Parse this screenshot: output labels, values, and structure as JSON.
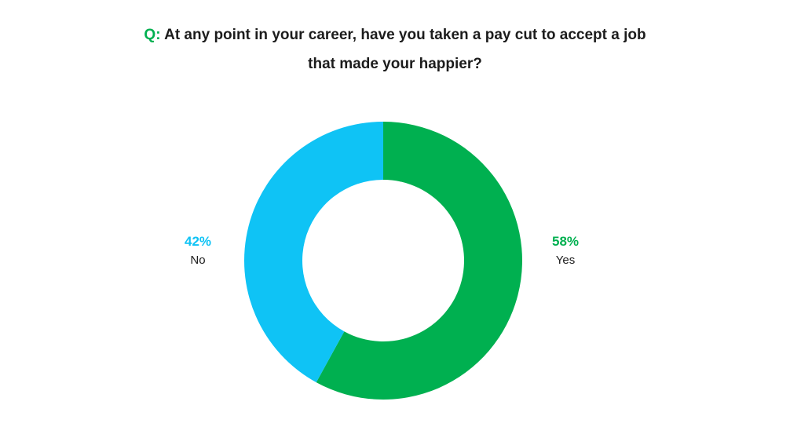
{
  "title": {
    "prefix": "Q:",
    "line1": "At any point in your career, have you taken a pay cut to accept a job",
    "line2": "that made your happier?"
  },
  "colors": {
    "accent_green": "#00b050",
    "accent_blue": "#0fc3f5",
    "text": "#1c1c1c"
  },
  "chart_data": {
    "type": "pie",
    "donut": true,
    "start_angle_deg": 0,
    "direction": "clockwise",
    "slices": [
      {
        "label": "Yes",
        "percent_label": "58%",
        "value": 58,
        "color": "#00b050"
      },
      {
        "label": "No",
        "percent_label": "42%",
        "value": 42,
        "color": "#0fc3f5"
      }
    ]
  }
}
